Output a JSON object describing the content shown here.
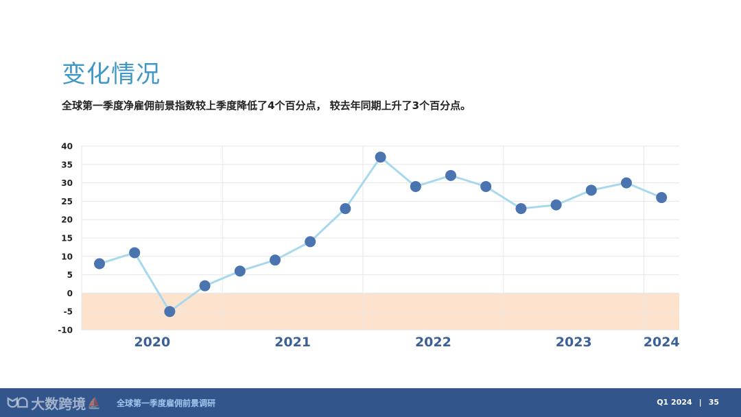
{
  "header": {
    "title": "变化情况",
    "subtitle": "全球第一季度净雇佣前景指数较上季度降低了4个百分点， 较去年同期上升了3个百分点。"
  },
  "chart_data": {
    "type": "line",
    "title": "",
    "xlabel": "",
    "ylabel": "",
    "ylim": [
      -10,
      40
    ],
    "yticks": [
      40,
      35,
      30,
      25,
      20,
      15,
      10,
      5,
      0,
      -5,
      -10
    ],
    "year_groups": [
      {
        "label": "2020",
        "count": 4
      },
      {
        "label": "2021",
        "count": 4
      },
      {
        "label": "2022",
        "count": 4
      },
      {
        "label": "2023",
        "count": 4
      },
      {
        "label": "2024",
        "count": 1
      }
    ],
    "series": [
      {
        "values": [
          8,
          11,
          -5,
          2,
          6,
          9,
          14,
          23,
          37,
          29,
          32,
          29,
          23,
          24,
          28,
          30,
          26
        ]
      }
    ],
    "negative_band": [
      -10,
      0
    ],
    "colors": {
      "line": "#a8d8ec",
      "marker": "#4a74b0",
      "negative_band": "#fde3cd",
      "grid": "#e6e6e6",
      "year_label": "#3b5f98"
    },
    "grid": true
  },
  "footer": {
    "logo_icon": "logo-icon",
    "logo_text": "大数跨境",
    "report_name": "全球第一季度雇佣前景调研",
    "period": "Q1 2024",
    "separator": "|",
    "page_number": "35"
  }
}
